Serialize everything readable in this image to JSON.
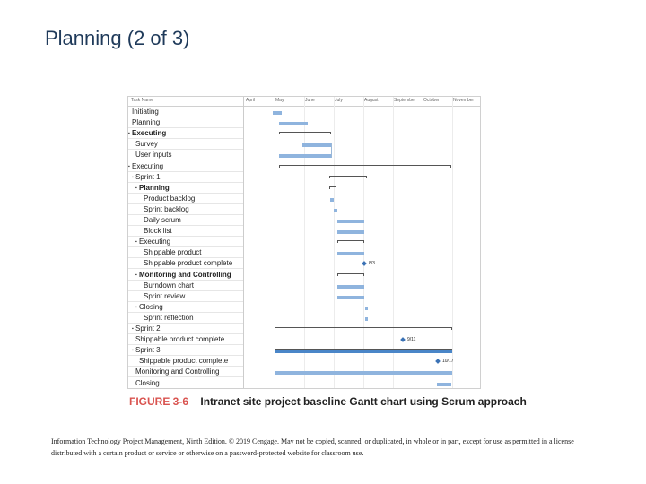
{
  "slide": {
    "title": "Planning (2 of 3)"
  },
  "gantt": {
    "header": {
      "task_name": "Task Name",
      "months": [
        "April",
        "May",
        "June",
        "July",
        "August",
        "September",
        "October",
        "November"
      ]
    },
    "tasks": [
      {
        "label": "Initiating",
        "level": 0,
        "bold": false
      },
      {
        "label": "Planning",
        "level": 0,
        "bold": false
      },
      {
        "label": "Executing",
        "level": 0,
        "bold": true,
        "collapse": "▪"
      },
      {
        "label": "Survey",
        "level": 1,
        "bold": false
      },
      {
        "label": "User inputs",
        "level": 1,
        "bold": false
      },
      {
        "label": "Executing",
        "level": 0,
        "bold": false,
        "collapse": "▪"
      },
      {
        "label": "Sprint 1",
        "level": 1,
        "bold": false,
        "collapse": "▪"
      },
      {
        "label": "Planning",
        "level": 2,
        "bold": true,
        "collapse": "▪"
      },
      {
        "label": "Product backlog",
        "level": 3,
        "bold": false
      },
      {
        "label": "Sprint backlog",
        "level": 3,
        "bold": false
      },
      {
        "label": "Daily scrum",
        "level": 3,
        "bold": false
      },
      {
        "label": "Block list",
        "level": 3,
        "bold": false
      },
      {
        "label": "Executing",
        "level": 2,
        "bold": false,
        "collapse": "▪"
      },
      {
        "label": "Shippable product",
        "level": 3,
        "bold": false
      },
      {
        "label": "Shippable product complete",
        "level": 3,
        "bold": false
      },
      {
        "label": "Monitoring and Controlling",
        "level": 2,
        "bold": true,
        "collapse": "▪"
      },
      {
        "label": "Burndown chart",
        "level": 3,
        "bold": false
      },
      {
        "label": "Sprint review",
        "level": 3,
        "bold": false
      },
      {
        "label": "Closing",
        "level": 2,
        "bold": false,
        "collapse": "▪"
      },
      {
        "label": "Sprint reflection",
        "level": 3,
        "bold": false
      },
      {
        "label": "Sprint 2",
        "level": 1,
        "bold": false,
        "collapse": "▪"
      },
      {
        "label": "Shippable product complete",
        "level": 1,
        "bold": false
      },
      {
        "label": "Sprint 3",
        "level": 1,
        "bold": false,
        "collapse": "▪"
      },
      {
        "label": "Shippable product complete",
        "level": 2,
        "bold": false
      },
      {
        "label": "Monitoring and Controlling",
        "level": 1,
        "bold": false
      },
      {
        "label": "Closing",
        "level": 1,
        "bold": false
      }
    ],
    "milestones": [
      {
        "row": 14,
        "label": "8/3"
      },
      {
        "row": 21,
        "label": "9/11"
      },
      {
        "row": 23,
        "label": "10/17"
      }
    ],
    "colors": {
      "bar": "#8fb4de",
      "bar_dark": "#4a86c8",
      "milestone": "#3b72b5"
    }
  },
  "caption": {
    "figure_number": "FIGURE 3-6",
    "text": "Intranet site project baseline Gantt chart using Scrum approach"
  },
  "footer": {
    "copyright": "Information Technology Project Management, Ninth Edition. © 2019 Cengage. May not be copied, scanned, or duplicated, in whole or in part, except for use as permitted in a license distributed with a certain product or service or otherwise on a password-protected website for classroom use."
  }
}
